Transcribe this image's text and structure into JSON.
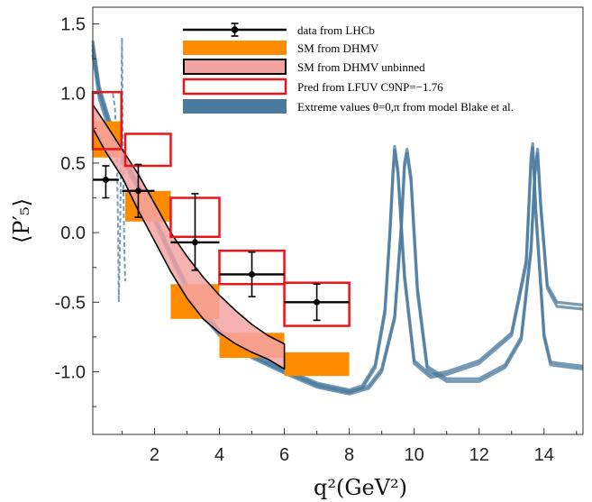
{
  "chart_data": {
    "type": "scatter",
    "title": "",
    "xlabel": "q²(GeV²)",
    "ylabel": "⟨P′₅⟩",
    "xlim": [
      0.1,
      15.2
    ],
    "ylim": [
      -1.45,
      1.62
    ],
    "x_ticks": [
      2,
      4,
      6,
      8,
      10,
      12,
      14
    ],
    "y_ticks": [
      1.5,
      1.0,
      0.5,
      0.0,
      -0.5,
      -1.0
    ],
    "y_tick_labels": [
      "1.5",
      "1.0",
      "0.5",
      "0.0",
      "-0.5",
      "-1.0"
    ],
    "grid": false,
    "legend_position": "top-right",
    "legend": [
      {
        "label": "data from LHCb",
        "style": "errorbar",
        "color": "#000000"
      },
      {
        "label": "SM from DHMV",
        "style": "filled",
        "color": "#ff8c00"
      },
      {
        "label": "SM from DHMV unbinned",
        "style": "band",
        "color": "#f4a3a3"
      },
      {
        "label": "Pred from LFUV C9NP=−1.76",
        "style": "open",
        "color": "#e8161b"
      },
      {
        "label": "Extreme values θ=0,π from model Blake et al.",
        "style": "filled",
        "color": "#4a7a9e"
      }
    ],
    "lhcb_data": [
      {
        "x": 0.5,
        "xerr": 0.4,
        "y": 0.38,
        "yerr_low": 0.13,
        "yerr_high": 0.1
      },
      {
        "x": 1.5,
        "xerr": 0.5,
        "y": 0.3,
        "yerr_low": 0.19,
        "yerr_high": 0.19
      },
      {
        "x": 3.25,
        "xerr": 0.75,
        "y": -0.07,
        "yerr_low": 0.2,
        "yerr_high": 0.35
      },
      {
        "x": 5.0,
        "xerr": 1.0,
        "y": -0.3,
        "yerr_low": 0.16,
        "yerr_high": 0.16
      },
      {
        "x": 7.0,
        "xerr": 1.0,
        "y": -0.5,
        "yerr_low": 0.13,
        "yerr_high": 0.13
      }
    ],
    "sm_bins": [
      {
        "x0": 0.1,
        "x1": 0.98,
        "y_low": 0.54,
        "y_high": 0.8
      },
      {
        "x0": 1.1,
        "x1": 2.5,
        "y_low": 0.08,
        "y_high": 0.3
      },
      {
        "x0": 2.5,
        "x1": 4.0,
        "y_low": -0.62,
        "y_high": -0.37
      },
      {
        "x0": 4.0,
        "x1": 6.0,
        "y_low": -0.9,
        "y_high": -0.72
      },
      {
        "x0": 6.0,
        "x1": 8.0,
        "y_low": -1.03,
        "y_high": -0.86
      }
    ],
    "lfuv_bins": [
      {
        "x0": 0.1,
        "x1": 0.98,
        "y_low": 0.6,
        "y_high": 1.01
      },
      {
        "x0": 1.1,
        "x1": 2.5,
        "y_low": 0.48,
        "y_high": 0.71
      },
      {
        "x0": 2.5,
        "x1": 4.0,
        "y_low": -0.03,
        "y_high": 0.25
      },
      {
        "x0": 4.0,
        "x1": 6.0,
        "y_low": -0.37,
        "y_high": -0.13
      },
      {
        "x0": 6.0,
        "x1": 8.0,
        "y_low": -0.67,
        "y_high": -0.36
      }
    ],
    "sm_unbinned_band": {
      "upper": [
        [
          0.1,
          0.92
        ],
        [
          0.5,
          0.78
        ],
        [
          1.0,
          0.6
        ],
        [
          1.5,
          0.42
        ],
        [
          2.0,
          0.21
        ],
        [
          2.5,
          0.0
        ],
        [
          3.0,
          -0.17
        ],
        [
          3.5,
          -0.32
        ],
        [
          4.0,
          -0.45
        ],
        [
          4.5,
          -0.56
        ],
        [
          5.0,
          -0.66
        ],
        [
          5.5,
          -0.74
        ],
        [
          6.0,
          -0.8
        ]
      ],
      "lower": [
        [
          0.1,
          0.75
        ],
        [
          0.5,
          0.58
        ],
        [
          1.0,
          0.4
        ],
        [
          1.5,
          0.16
        ],
        [
          2.0,
          -0.06
        ],
        [
          2.5,
          -0.28
        ],
        [
          3.0,
          -0.47
        ],
        [
          3.5,
          -0.62
        ],
        [
          4.0,
          -0.72
        ],
        [
          4.5,
          -0.8
        ],
        [
          5.0,
          -0.86
        ],
        [
          5.5,
          -0.91
        ],
        [
          6.0,
          -0.98
        ]
      ]
    },
    "model_curves": [
      [
        [
          0.1,
          1.38
        ],
        [
          0.3,
          1.05
        ],
        [
          0.6,
          0.82
        ],
        [
          1.0,
          0.58
        ],
        [
          1.5,
          0.35
        ],
        [
          2.0,
          0.12
        ],
        [
          2.5,
          -0.14
        ],
        [
          3.0,
          -0.38
        ],
        [
          3.5,
          -0.56
        ],
        [
          4.0,
          -0.7
        ],
        [
          5.0,
          -0.87
        ],
        [
          6.0,
          -0.98
        ],
        [
          7.0,
          -1.08
        ],
        [
          8.0,
          -1.13
        ],
        [
          8.4,
          -1.1
        ],
        [
          8.8,
          -0.95
        ],
        [
          9.1,
          -0.55
        ],
        [
          9.25,
          0.0
        ],
        [
          9.35,
          0.45
        ],
        [
          9.4,
          0.62
        ],
        [
          9.5,
          0.45
        ],
        [
          9.7,
          -0.3
        ],
        [
          10.0,
          -0.92
        ],
        [
          10.5,
          -1.02
        ],
        [
          11.0,
          -1.0
        ],
        [
          12.0,
          -0.92
        ],
        [
          13.0,
          -0.72
        ],
        [
          13.45,
          -0.2
        ],
        [
          13.6,
          0.55
        ],
        [
          13.65,
          0.64
        ],
        [
          13.75,
          0.15
        ],
        [
          14.0,
          -0.73
        ],
        [
          14.2,
          -0.93
        ],
        [
          14.5,
          -0.94
        ],
        [
          15.2,
          -0.96
        ]
      ],
      [
        [
          0.1,
          1.32
        ],
        [
          0.3,
          1.0
        ],
        [
          0.6,
          0.78
        ],
        [
          1.0,
          0.55
        ],
        [
          1.5,
          0.33
        ],
        [
          2.0,
          0.1
        ],
        [
          2.5,
          -0.16
        ],
        [
          3.0,
          -0.4
        ],
        [
          3.5,
          -0.58
        ],
        [
          4.0,
          -0.72
        ],
        [
          5.0,
          -0.89
        ],
        [
          6.0,
          -1.0
        ],
        [
          7.0,
          -1.1
        ],
        [
          8.0,
          -1.15
        ],
        [
          8.6,
          -1.1
        ],
        [
          9.0,
          -0.98
        ],
        [
          9.4,
          -0.6
        ],
        [
          9.6,
          0.05
        ],
        [
          9.7,
          0.5
        ],
        [
          9.78,
          0.6
        ],
        [
          9.9,
          0.4
        ],
        [
          10.1,
          -0.4
        ],
        [
          10.4,
          -0.96
        ],
        [
          11.0,
          -1.05
        ],
        [
          12.0,
          -1.05
        ],
        [
          12.8,
          -0.95
        ],
        [
          13.3,
          -0.75
        ],
        [
          13.6,
          -0.1
        ],
        [
          13.72,
          0.45
        ],
        [
          13.8,
          0.6
        ],
        [
          13.9,
          0.2
        ],
        [
          14.1,
          -0.38
        ],
        [
          14.4,
          -0.5
        ],
        [
          15.2,
          -0.52
        ]
      ],
      [
        [
          0.1,
          1.28
        ],
        [
          0.3,
          0.96
        ],
        [
          0.6,
          0.74
        ],
        [
          1.0,
          0.52
        ],
        [
          1.5,
          0.31
        ],
        [
          2.0,
          0.08
        ],
        [
          2.5,
          -0.18
        ],
        [
          3.0,
          -0.42
        ],
        [
          3.5,
          -0.6
        ],
        [
          4.0,
          -0.74
        ],
        [
          5.0,
          -0.9
        ],
        [
          6.0,
          -1.01
        ],
        [
          7.0,
          -1.11
        ],
        [
          8.0,
          -1.16
        ],
        [
          8.6,
          -1.12
        ],
        [
          9.0,
          -1.0
        ],
        [
          9.4,
          -0.62
        ],
        [
          9.6,
          0.02
        ],
        [
          9.7,
          0.47
        ],
        [
          9.78,
          0.57
        ],
        [
          9.9,
          0.37
        ],
        [
          10.1,
          -0.43
        ],
        [
          10.4,
          -0.98
        ],
        [
          11.0,
          -1.07
        ],
        [
          12.0,
          -1.07
        ],
        [
          12.8,
          -0.97
        ],
        [
          13.3,
          -0.77
        ],
        [
          13.6,
          -0.13
        ],
        [
          13.72,
          0.42
        ],
        [
          13.8,
          0.57
        ],
        [
          13.9,
          0.17
        ],
        [
          14.1,
          -0.4
        ],
        [
          14.4,
          -0.53
        ],
        [
          15.2,
          -0.55
        ]
      ],
      [
        [
          0.1,
          1.35
        ],
        [
          0.3,
          1.02
        ],
        [
          0.6,
          0.8
        ],
        [
          1.0,
          0.56
        ],
        [
          1.5,
          0.34
        ],
        [
          2.0,
          0.11
        ],
        [
          2.5,
          -0.15
        ],
        [
          3.0,
          -0.39
        ],
        [
          3.5,
          -0.57
        ],
        [
          4.0,
          -0.71
        ],
        [
          5.0,
          -0.88
        ],
        [
          6.0,
          -0.99
        ],
        [
          7.0,
          -1.09
        ],
        [
          8.0,
          -1.14
        ],
        [
          8.4,
          -1.12
        ],
        [
          8.8,
          -0.97
        ],
        [
          9.1,
          -0.58
        ],
        [
          9.25,
          -0.03
        ],
        [
          9.35,
          0.42
        ],
        [
          9.4,
          0.59
        ],
        [
          9.5,
          0.42
        ],
        [
          9.7,
          -0.33
        ],
        [
          10.0,
          -0.94
        ],
        [
          10.5,
          -1.04
        ],
        [
          11.0,
          -1.02
        ],
        [
          12.0,
          -0.94
        ],
        [
          13.0,
          -0.74
        ],
        [
          13.45,
          -0.23
        ],
        [
          13.6,
          0.52
        ],
        [
          13.65,
          0.61
        ],
        [
          13.75,
          0.12
        ],
        [
          14.0,
          -0.75
        ],
        [
          14.2,
          -0.95
        ],
        [
          14.5,
          -0.96
        ],
        [
          15.2,
          -0.98
        ]
      ]
    ],
    "spike": [
      [
        0.72,
        1.0
      ],
      [
        0.78,
        0.9
      ],
      [
        0.84,
        0.6
      ],
      [
        0.88,
        0.0
      ],
      [
        0.9,
        -0.5
      ],
      [
        0.94,
        0.0
      ],
      [
        0.98,
        0.8
      ],
      [
        1.0,
        1.4
      ],
      [
        1.02,
        0.8
      ],
      [
        1.05,
        0.2
      ],
      [
        1.08,
        -0.2
      ],
      [
        1.1,
        -0.35
      ]
    ]
  }
}
